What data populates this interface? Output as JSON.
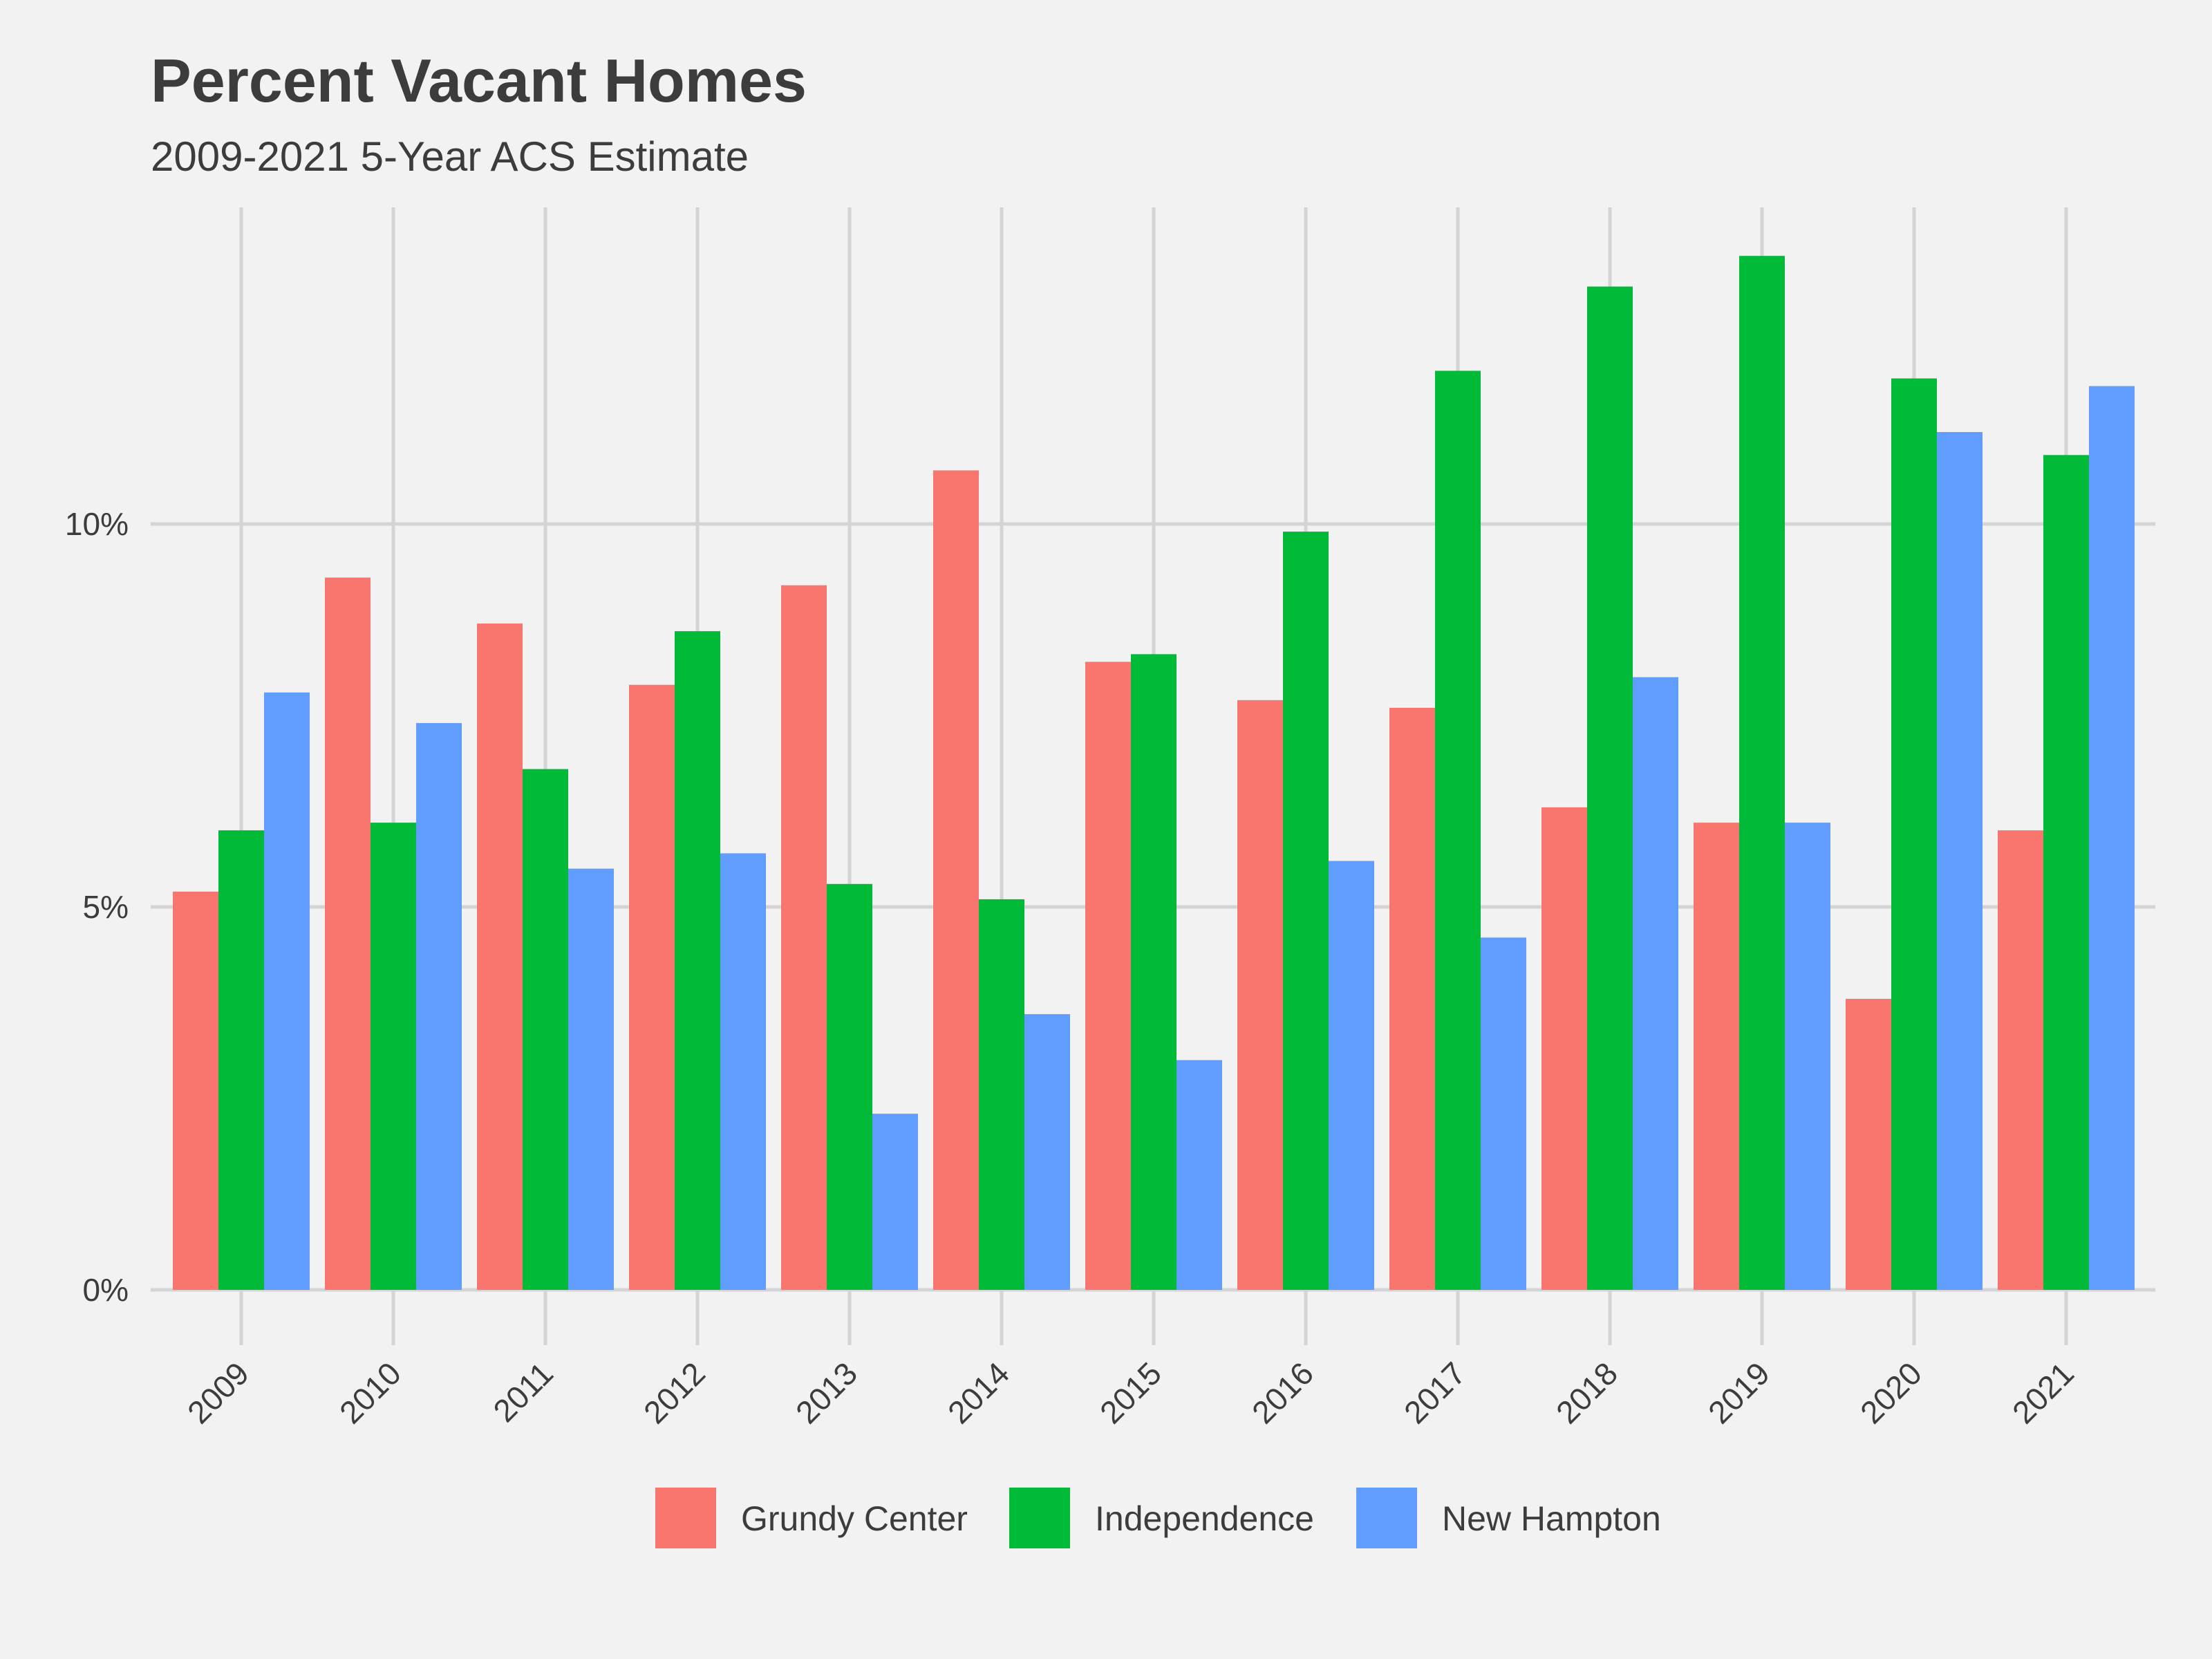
{
  "chart_data": {
    "type": "bar",
    "title": "Percent Vacant Homes",
    "subtitle": "2009-2021 5-Year ACS Estimate",
    "xlabel": "",
    "ylabel": "",
    "categories": [
      "2009",
      "2010",
      "2011",
      "2012",
      "2013",
      "2014",
      "2015",
      "2016",
      "2017",
      "2018",
      "2019",
      "2020",
      "2021"
    ],
    "series": [
      {
        "name": "Grundy Center",
        "color": "#f8766d",
        "values": [
          5.2,
          9.3,
          8.7,
          7.9,
          9.2,
          10.7,
          8.2,
          7.7,
          7.6,
          6.3,
          6.1,
          3.8,
          6.0
        ]
      },
      {
        "name": "Independence",
        "color": "#00ba38",
        "values": [
          6.0,
          6.1,
          6.8,
          8.6,
          5.3,
          5.1,
          8.3,
          9.9,
          12.0,
          13.1,
          13.5,
          11.9,
          10.9
        ]
      },
      {
        "name": "New Hampton",
        "color": "#619cff",
        "values": [
          7.8,
          7.4,
          5.5,
          5.7,
          2.3,
          3.6,
          3.0,
          5.6,
          4.6,
          8.0,
          6.1,
          11.2,
          11.8
        ]
      }
    ],
    "y_ticks": [
      0,
      5,
      10
    ],
    "y_tick_labels": [
      "0%",
      "5%",
      "10%"
    ],
    "ylim": [
      0,
      14.1
    ],
    "grid": true,
    "legend_position": "bottom",
    "colors": {
      "background": "#f2f2f2",
      "grid": "#d4d4d4",
      "text": "#3c3c3c"
    }
  }
}
